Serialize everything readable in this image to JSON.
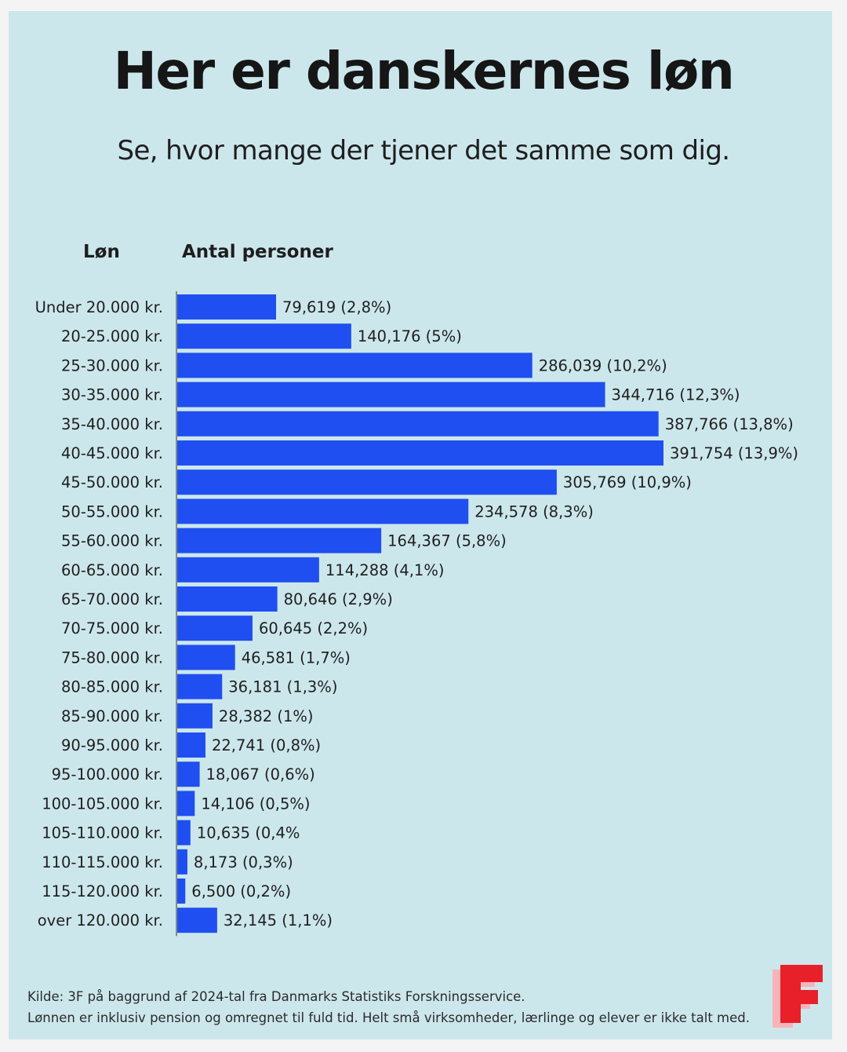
{
  "title": "Her er danskernes løn",
  "subtitle": "Se, hvor mange der tjener det samme som dig.",
  "column_headers": {
    "category": "Løn",
    "value": "Antal personer"
  },
  "colors": {
    "background": "#cce7ec",
    "bar": "#1f4ff0",
    "logo_red": "#e8202a",
    "logo_pink": "#f7b4b8"
  },
  "chart_data": {
    "type": "bar",
    "orientation": "horizontal",
    "title": "Her er danskernes løn",
    "subtitle": "Se, hvor mange der tjener det samme som dig.",
    "xlabel": "Antal personer",
    "ylabel": "Løn",
    "grid": false,
    "categories": [
      "Under 20.000 kr.",
      "20-25.000 kr.",
      "25-30.000 kr.",
      "30-35.000 kr.",
      "35-40.000 kr.",
      "40-45.000 kr.",
      "45-50.000 kr.",
      "50-55.000 kr.",
      "55-60.000 kr.",
      "60-65.000 kr.",
      "65-70.000 kr.",
      "70-75.000 kr.",
      "75-80.000 kr.",
      "80-85.000 kr.",
      "85-90.000 kr.",
      "90-95.000 kr.",
      "95-100.000 kr.",
      "100-105.000 kr.",
      "105-110.000 kr.",
      "110-115.000 kr.",
      "115-120.000 kr.",
      "over 120.000 kr."
    ],
    "values": [
      79619,
      140176,
      286039,
      344716,
      387766,
      391754,
      305769,
      234578,
      164367,
      114288,
      80646,
      60645,
      46581,
      36181,
      28382,
      22741,
      18067,
      14106,
      10635,
      8173,
      6500,
      32145
    ],
    "data_labels": [
      "79,619 (2,8%)",
      "140,176 (5%)",
      "286,039 (10,2%)",
      "344,716 (12,3%)",
      "387,766 (13,8%)",
      "391,754 (13,9%)",
      "305,769 (10,9%)",
      "234,578 (8,3%)",
      "164,367 (5,8%)",
      "114,288 (4,1%)",
      "80,646 (2,9%)",
      "60,645 (2,2%)",
      "46,581 (1,7%)",
      "36,181 (1,3%)",
      "28,382 (1%)",
      "22,741 (0,8%)",
      "18,067 (0,6%)",
      "14,106 (0,5%)",
      "10,635 (0,4%",
      "8,173 (0,3%)",
      "6,500 (0,2%)",
      "32,145 (1,1%)"
    ]
  },
  "footer": {
    "source": "Kilde: 3F på baggrund af 2024-tal fra Danmarks Statistiks Forskningsservice.",
    "note": "Lønnen er inklusiv pension og omregnet til fuld tid. Helt små virksomheder, lærlinge og elever er ikke talt med."
  },
  "logo": {
    "letter": "F",
    "icon": "3f-logo-icon"
  }
}
